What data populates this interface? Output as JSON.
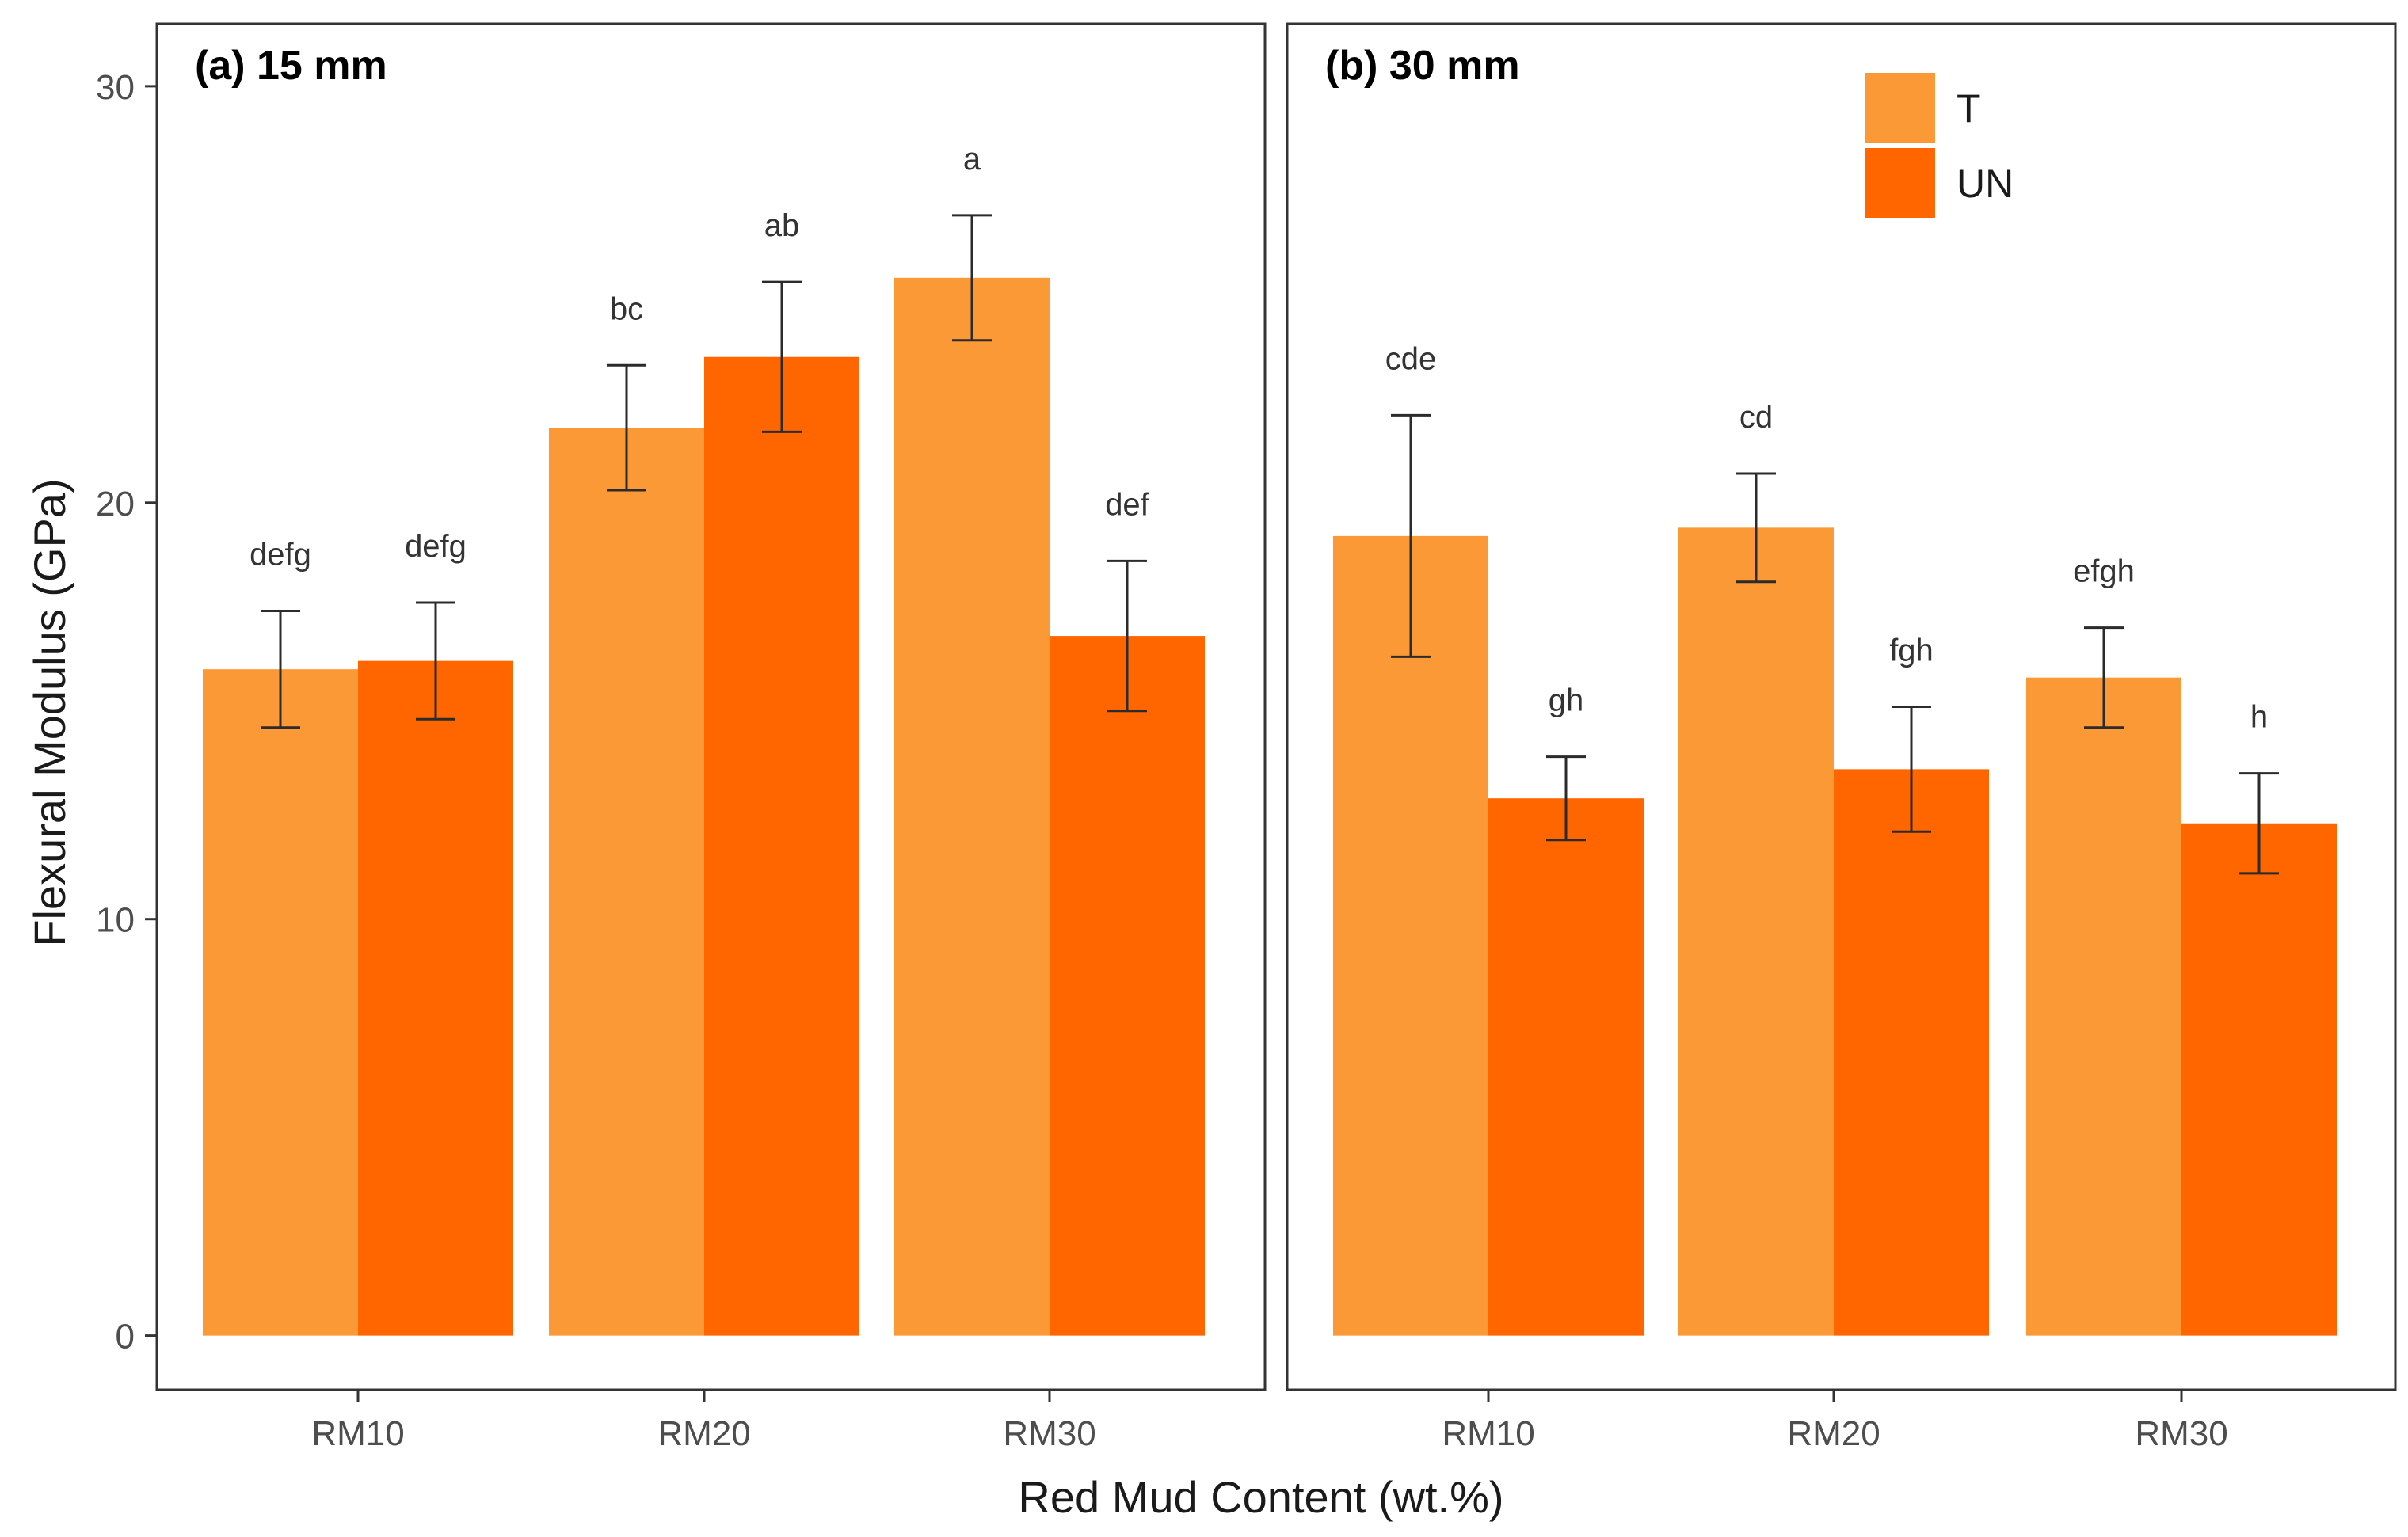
{
  "chart_data": {
    "type": "bar",
    "ylabel": "Flexural Modulus (GPa)",
    "xlabel": "Red Mud Content (wt.%)",
    "ylim": [
      -1.3,
      31.5
    ],
    "yticks": [
      0,
      10,
      20,
      30
    ],
    "categories": [
      "RM10",
      "RM20",
      "RM30"
    ],
    "legend": {
      "position": "top-right",
      "entries": [
        {
          "name": "T",
          "color": "#fb9936"
        },
        {
          "name": "UN",
          "color": "#ff6600"
        }
      ]
    },
    "panels": [
      {
        "title": "(a) 15 mm",
        "series": [
          {
            "name": "T",
            "values": [
              16.0,
              21.8,
              25.4
            ],
            "errors": [
              1.4,
              1.5,
              1.5
            ],
            "labels": [
              "defg",
              "bc",
              "a"
            ]
          },
          {
            "name": "UN",
            "values": [
              16.2,
              23.5,
              16.8
            ],
            "errors": [
              1.4,
              1.8,
              1.8
            ],
            "labels": [
              "defg",
              "ab",
              "def"
            ]
          }
        ]
      },
      {
        "title": "(b) 30 mm",
        "series": [
          {
            "name": "T",
            "values": [
              19.2,
              19.4,
              15.8
            ],
            "errors": [
              2.9,
              1.3,
              1.2
            ],
            "labels": [
              "cde",
              "cd",
              "efgh"
            ]
          },
          {
            "name": "UN",
            "values": [
              12.9,
              13.6,
              12.3
            ],
            "errors": [
              1.0,
              1.5,
              1.2
            ],
            "labels": [
              "gh",
              "fgh",
              "h"
            ]
          }
        ]
      }
    ]
  }
}
